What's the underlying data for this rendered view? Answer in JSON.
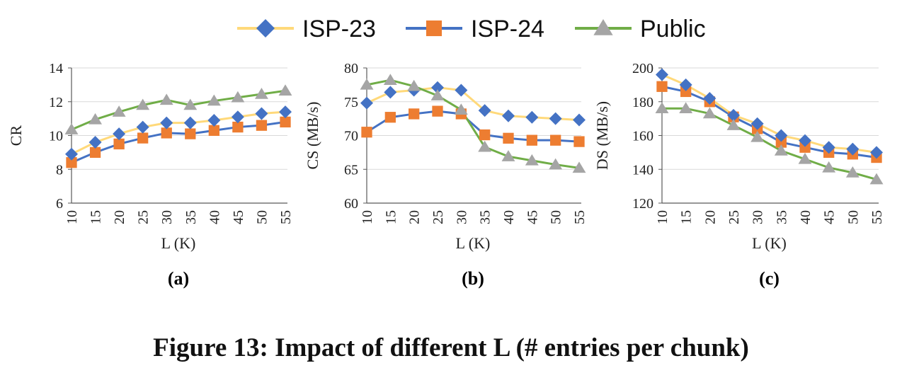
{
  "legend": [
    {
      "name": "ISP-23",
      "line_color": "#FFD97A",
      "marker_color": "#4472C4",
      "marker": "diamond"
    },
    {
      "name": "ISP-24",
      "line_color": "#4472C4",
      "marker_color": "#ED7D31",
      "marker": "square"
    },
    {
      "name": "Public",
      "line_color": "#70AD47",
      "marker_color": "#A5A5A5",
      "marker": "triangle"
    }
  ],
  "caption": "Figure 13: Impact of different L (# entries per chunk)",
  "chart_data": [
    {
      "type": "line",
      "label": "(a)",
      "xlabel": "L (K)",
      "ylabel": "CR",
      "categories": [
        "10",
        "15",
        "20",
        "25",
        "30",
        "35",
        "40",
        "45",
        "50",
        "55"
      ],
      "ylim": [
        6,
        14
      ],
      "yticks": [
        6,
        8,
        10,
        12,
        14
      ],
      "series": [
        {
          "name": "ISP-23",
          "values": [
            8.9,
            9.6,
            10.1,
            10.5,
            10.75,
            10.75,
            10.9,
            11.1,
            11.3,
            11.4
          ]
        },
        {
          "name": "ISP-24",
          "values": [
            8.4,
            9.0,
            9.5,
            9.85,
            10.15,
            10.1,
            10.3,
            10.5,
            10.6,
            10.8
          ]
        },
        {
          "name": "Public",
          "values": [
            10.35,
            10.95,
            11.4,
            11.8,
            12.1,
            11.8,
            12.05,
            12.25,
            12.45,
            12.65
          ]
        }
      ]
    },
    {
      "type": "line",
      "label": "(b)",
      "xlabel": "L (K)",
      "ylabel": "CS (MB/s)",
      "categories": [
        "10",
        "15",
        "20",
        "25",
        "30",
        "35",
        "40",
        "45",
        "50",
        "55"
      ],
      "ylim": [
        60,
        80
      ],
      "yticks": [
        60,
        65,
        70,
        75,
        80
      ],
      "series": [
        {
          "name": "ISP-23",
          "values": [
            74.8,
            76.4,
            76.7,
            77.1,
            76.7,
            73.7,
            72.9,
            72.7,
            72.5,
            72.3
          ]
        },
        {
          "name": "ISP-24",
          "values": [
            70.5,
            72.7,
            73.2,
            73.6,
            73.2,
            70.1,
            69.6,
            69.3,
            69.3,
            69.1
          ]
        },
        {
          "name": "Public",
          "values": [
            77.5,
            78.2,
            77.3,
            75.9,
            73.8,
            68.3,
            66.9,
            66.3,
            65.7,
            65.2
          ]
        }
      ]
    },
    {
      "type": "line",
      "label": "(c)",
      "xlabel": "L (K)",
      "ylabel": "DS (MB/s)",
      "categories": [
        "10",
        "15",
        "20",
        "25",
        "30",
        "35",
        "40",
        "45",
        "50",
        "55"
      ],
      "ylim": [
        120,
        200
      ],
      "yticks": [
        120,
        140,
        160,
        180,
        200
      ],
      "series": [
        {
          "name": "ISP-23",
          "values": [
            196,
            190,
            182,
            172,
            167,
            160,
            157,
            153,
            152,
            150
          ]
        },
        {
          "name": "ISP-24",
          "values": [
            189,
            186,
            180,
            171,
            164,
            156,
            153,
            150,
            149,
            147
          ]
        },
        {
          "name": "Public",
          "values": [
            176,
            176,
            173,
            166,
            159,
            151,
            146,
            141,
            138,
            134
          ]
        }
      ]
    }
  ]
}
